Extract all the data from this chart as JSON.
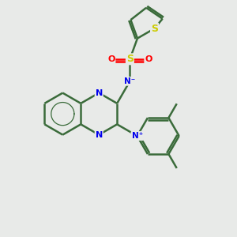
{
  "bg_color": "#e8eae8",
  "bond_color": "#3a6b3a",
  "bond_width": 1.8,
  "S_color": "#cccc00",
  "O_color": "#ff0000",
  "N_color": "#0000ee",
  "figsize": [
    3.0,
    3.0
  ],
  "dpi": 100,
  "xlim": [
    0,
    10
  ],
  "ylim": [
    0,
    10
  ]
}
